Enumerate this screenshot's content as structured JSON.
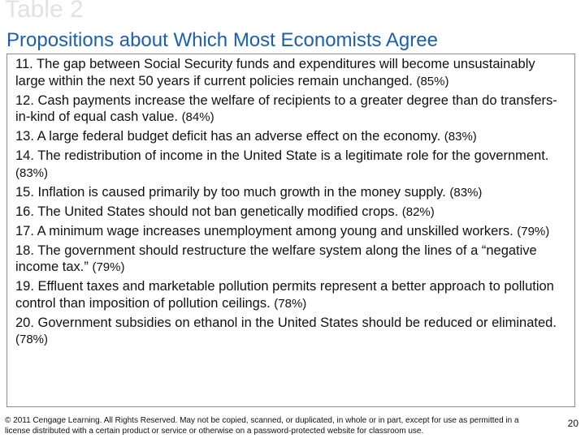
{
  "slide": {
    "label": "Table 2",
    "title": "Propositions about Which Most Economists Agree"
  },
  "propositions": [
    {
      "text": "11. The gap between Social Security funds and expenditures will become unsustainably large within the next 50 years if current policies remain unchanged.",
      "pct": "(85%)"
    },
    {
      "text": "12. Cash payments increase the welfare of recipients to a greater degree than do transfers-in-kind of equal cash value.",
      "pct": "(84%)"
    },
    {
      "text": "13. A large federal budget deficit has an adverse effect on the economy.",
      "pct": "(83%)"
    },
    {
      "text": "14. The redistribution of income in the United State is a legitimate role for the government.",
      "pct": "(83%)"
    },
    {
      "text": "15. Inflation is caused primarily by too much growth in the money supply.",
      "pct": "(83%)"
    },
    {
      "text": "16. The United States should not ban genetically modified crops.",
      "pct": "(82%)"
    },
    {
      "text": "17. A minimum wage increases unemployment among young and unskilled workers.",
      "pct": "(79%)"
    },
    {
      "text": "18. The government should restructure the welfare system along the lines of a “negative income tax.”",
      "pct": "(79%)"
    },
    {
      "text": "19. Effluent taxes and marketable pollution permits represent a better approach to pollution control than imposition of pollution ceilings.",
      "pct": "(78%)"
    },
    {
      "text": "20. Government subsidies on ethanol in the United States should be reduced or eliminated.",
      "pct": "(78%)"
    }
  ],
  "footer": {
    "copyright": "© 2011 Cengage Learning. All Rights Reserved. May not be copied, scanned, or duplicated, in whole or in part, except for use as permitted in a license distributed with a certain product or service or otherwise on a password-protected website for classroom use.",
    "page_number": "20"
  }
}
